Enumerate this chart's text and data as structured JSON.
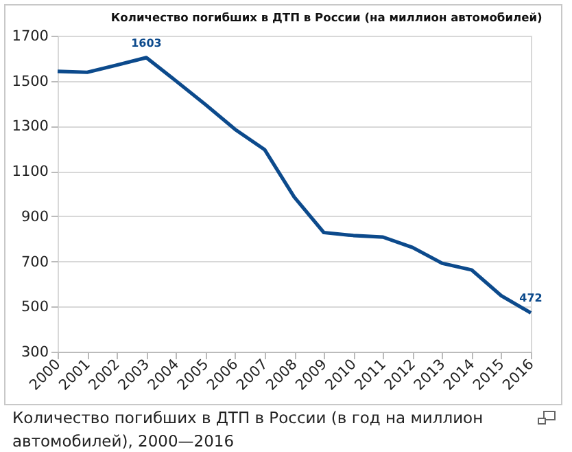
{
  "chart_data": {
    "type": "line",
    "title": "Количество погибших в ДТП в России (на миллион автомобилей)",
    "x": [
      2000,
      2001,
      2002,
      2003,
      2004,
      2005,
      2006,
      2007,
      2008,
      2009,
      2010,
      2011,
      2012,
      2013,
      2014,
      2015,
      2016
    ],
    "series": [
      {
        "color": "#0c4a8c",
        "values": [
          1542,
          1538,
          1570,
          1603,
          1500,
          1395,
          1285,
          1195,
          985,
          828,
          815,
          808,
          762,
          692,
          662,
          548,
          472
        ],
        "value_labels": [
          null,
          null,
          null,
          "1603",
          null,
          null,
          null,
          null,
          null,
          null,
          null,
          null,
          null,
          null,
          null,
          null,
          "472"
        ]
      }
    ],
    "xlim": [
      2000,
      2016
    ],
    "xticks": [
      2000,
      2001,
      2002,
      2003,
      2004,
      2005,
      2006,
      2007,
      2008,
      2009,
      2010,
      2011,
      2012,
      2013,
      2014,
      2015,
      2016
    ],
    "ylim": [
      300,
      1700
    ],
    "yticks": [
      300,
      500,
      700,
      900,
      1100,
      1300,
      1500,
      1700
    ],
    "grid": "y",
    "legend": false,
    "marker": "none",
    "line_style": "solid",
    "annotations": [
      "Количество погибших в ДТП в России (в год на миллион автомобилей), 2000—2016"
    ]
  }
}
